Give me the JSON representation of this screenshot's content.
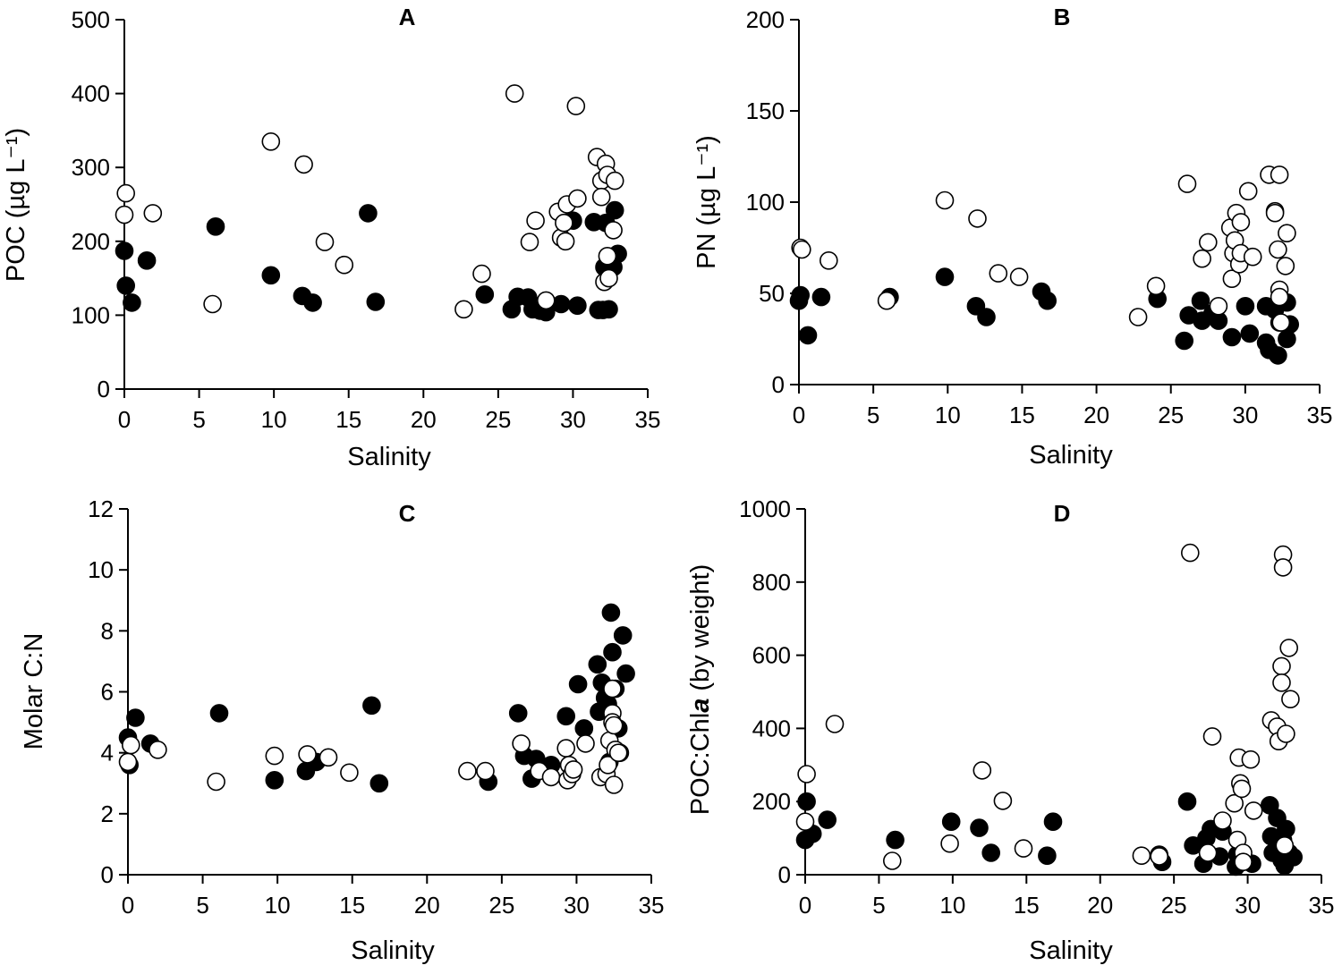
{
  "colors": {
    "filled": "#000000",
    "open_fill": "#ffffff",
    "stroke": "#000000"
  },
  "chart_data": [
    {
      "type": "scatter",
      "panel": "A",
      "xlabel": "Salinity",
      "ylabel": "POC (µg L⁻¹)",
      "xlim": [
        0,
        35
      ],
      "ylim": [
        0,
        500
      ],
      "xticks": [
        0,
        5,
        10,
        15,
        20,
        25,
        30,
        35
      ],
      "yticks": [
        0,
        100,
        200,
        300,
        400,
        500
      ],
      "series": [
        {
          "name": "filled",
          "points": [
            [
              0,
              187
            ],
            [
              0.1,
              140
            ],
            [
              0.5,
              117
            ],
            [
              1.5,
              174
            ],
            [
              6.1,
              220
            ],
            [
              9.8,
              154
            ],
            [
              11.9,
              126
            ],
            [
              12.6,
              117
            ],
            [
              16.3,
              238
            ],
            [
              16.8,
              118
            ],
            [
              24.1,
              128
            ],
            [
              25.9,
              108
            ],
            [
              26.3,
              125
            ],
            [
              27,
              124
            ],
            [
              27.3,
              108
            ],
            [
              27.8,
              106
            ],
            [
              28.2,
              104
            ],
            [
              29.2,
              115
            ],
            [
              30,
              228
            ],
            [
              30.3,
              113
            ],
            [
              31.4,
              226
            ],
            [
              31.7,
              107
            ],
            [
              32,
              107
            ],
            [
              32.1,
              165
            ],
            [
              32.2,
              225
            ],
            [
              32.4,
              108
            ],
            [
              32.7,
              165
            ],
            [
              32.8,
              242
            ],
            [
              33,
              183
            ]
          ]
        },
        {
          "name": "open",
          "points": [
            [
              0,
              236
            ],
            [
              0.1,
              265
            ],
            [
              1.9,
              238
            ],
            [
              5.9,
              115
            ],
            [
              9.8,
              335
            ],
            [
              12,
              304
            ],
            [
              13.4,
              199
            ],
            [
              14.7,
              168
            ],
            [
              22.7,
              108
            ],
            [
              23.9,
              156
            ],
            [
              26.1,
              400
            ],
            [
              27.1,
              199
            ],
            [
              27.5,
              228
            ],
            [
              28.2,
              120
            ],
            [
              29,
              240
            ],
            [
              29.2,
              205
            ],
            [
              29.4,
              225
            ],
            [
              29.5,
              200
            ],
            [
              29.6,
              250
            ],
            [
              30.2,
              383
            ],
            [
              30.3,
              258
            ],
            [
              31.6,
              314
            ],
            [
              31.9,
              282
            ],
            [
              31.9,
              260
            ],
            [
              32.1,
              145
            ],
            [
              32.2,
              305
            ],
            [
              32.3,
              290
            ],
            [
              32.3,
              180
            ],
            [
              32.4,
              150
            ],
            [
              32.7,
              215
            ],
            [
              32.8,
              282
            ]
          ]
        }
      ]
    },
    {
      "type": "scatter",
      "panel": "B",
      "xlabel": "Salinity",
      "ylabel": "PN (µg L⁻¹)",
      "xlim": [
        0,
        35
      ],
      "ylim": [
        0,
        200
      ],
      "xticks": [
        0,
        5,
        10,
        15,
        20,
        25,
        30,
        35
      ],
      "yticks": [
        0,
        50,
        100,
        150,
        200
      ],
      "series": [
        {
          "name": "filled",
          "points": [
            [
              0,
              46
            ],
            [
              0.1,
              49
            ],
            [
              0.6,
              27
            ],
            [
              1.5,
              48
            ],
            [
              6.1,
              48
            ],
            [
              9.8,
              59
            ],
            [
              11.9,
              43
            ],
            [
              12.6,
              37
            ],
            [
              16.3,
              51
            ],
            [
              16.7,
              46
            ],
            [
              24.1,
              47
            ],
            [
              25.9,
              24
            ],
            [
              26.2,
              38
            ],
            [
              27,
              46
            ],
            [
              27.1,
              35
            ],
            [
              27.8,
              39
            ],
            [
              28.2,
              35
            ],
            [
              29.1,
              26
            ],
            [
              30,
              43
            ],
            [
              30.3,
              28
            ],
            [
              31.4,
              43
            ],
            [
              31.4,
              23
            ],
            [
              31.6,
              19
            ],
            [
              32,
              41
            ],
            [
              32.2,
              16
            ],
            [
              32.3,
              34
            ],
            [
              32.8,
              45
            ],
            [
              32.8,
              25
            ],
            [
              33,
              33
            ]
          ]
        },
        {
          "name": "open",
          "points": [
            [
              0.1,
              75
            ],
            [
              0.2,
              74
            ],
            [
              2,
              68
            ],
            [
              5.9,
              46
            ],
            [
              9.8,
              101
            ],
            [
              12,
              91
            ],
            [
              13.4,
              61
            ],
            [
              14.8,
              59
            ],
            [
              22.8,
              37
            ],
            [
              24,
              54
            ],
            [
              26.1,
              110
            ],
            [
              27.1,
              69
            ],
            [
              27.5,
              78
            ],
            [
              28.2,
              43
            ],
            [
              29,
              86
            ],
            [
              29.1,
              58
            ],
            [
              29.2,
              72
            ],
            [
              29.3,
              79
            ],
            [
              29.4,
              94
            ],
            [
              29.6,
              66
            ],
            [
              29.7,
              89
            ],
            [
              29.7,
              72
            ],
            [
              30.2,
              106
            ],
            [
              30.5,
              70
            ],
            [
              31.6,
              115
            ],
            [
              32,
              95
            ],
            [
              32,
              94
            ],
            [
              32.2,
              74
            ],
            [
              32.3,
              52
            ],
            [
              32.3,
              48
            ],
            [
              32.3,
              115
            ],
            [
              32.4,
              34
            ],
            [
              32.7,
              65
            ],
            [
              32.8,
              83
            ]
          ]
        }
      ]
    },
    {
      "type": "scatter",
      "panel": "C",
      "xlabel": "Salinity",
      "ylabel": "Molar C:N",
      "xlim": [
        0,
        35
      ],
      "ylim": [
        0,
        12
      ],
      "xticks": [
        0,
        5,
        10,
        15,
        20,
        25,
        30,
        35
      ],
      "yticks": [
        0,
        2,
        4,
        6,
        8,
        10,
        12
      ],
      "series": [
        {
          "name": "filled",
          "points": [
            [
              0,
              4.5
            ],
            [
              0.1,
              3.6
            ],
            [
              0.5,
              5.15
            ],
            [
              1.5,
              4.3
            ],
            [
              6.1,
              5.3
            ],
            [
              9.8,
              3.1
            ],
            [
              11.9,
              3.4
            ],
            [
              12.6,
              3.7
            ],
            [
              16.3,
              5.55
            ],
            [
              16.8,
              3
            ],
            [
              24.1,
              3.05
            ],
            [
              26.1,
              5.3
            ],
            [
              26.5,
              3.9
            ],
            [
              27,
              3.15
            ],
            [
              27.3,
              3.8
            ],
            [
              28.3,
              3.6
            ],
            [
              29.3,
              5.2
            ],
            [
              30.1,
              6.25
            ],
            [
              30.5,
              4.8
            ],
            [
              31.4,
              6.9
            ],
            [
              31.5,
              5.35
            ],
            [
              31.7,
              6.3
            ],
            [
              31.9,
              5.8
            ],
            [
              32.1,
              5.6
            ],
            [
              32.2,
              3.7
            ],
            [
              32.3,
              8.6
            ],
            [
              32.4,
              7.3
            ],
            [
              32.6,
              6.1
            ],
            [
              32.8,
              4.8
            ],
            [
              32.9,
              4
            ],
            [
              33.1,
              7.85
            ],
            [
              33.3,
              6.6
            ]
          ]
        },
        {
          "name": "open",
          "points": [
            [
              0,
              3.7
            ],
            [
              0.2,
              4.25
            ],
            [
              2,
              4.1
            ],
            [
              5.9,
              3.05
            ],
            [
              9.8,
              3.9
            ],
            [
              12,
              3.95
            ],
            [
              13.4,
              3.85
            ],
            [
              14.8,
              3.35
            ],
            [
              22.7,
              3.4
            ],
            [
              23.9,
              3.4
            ],
            [
              26.3,
              4.3
            ],
            [
              27.5,
              3.4
            ],
            [
              28.3,
              3.2
            ],
            [
              29.3,
              4.15
            ],
            [
              29.4,
              3.1
            ],
            [
              29.5,
              3.6
            ],
            [
              29.7,
              3.3
            ],
            [
              29.8,
              3.45
            ],
            [
              30.6,
              4.3
            ],
            [
              31.6,
              3.2
            ],
            [
              32,
              3.3
            ],
            [
              32.1,
              3.6
            ],
            [
              32.2,
              4.4
            ],
            [
              32.4,
              6.1
            ],
            [
              32.4,
              5.3
            ],
            [
              32.4,
              5.0
            ],
            [
              32.5,
              4.9
            ],
            [
              32.5,
              2.95
            ],
            [
              32.6,
              4.1
            ],
            [
              32.8,
              4.0
            ]
          ]
        }
      ]
    },
    {
      "type": "scatter",
      "panel": "D",
      "xlabel": "Salinity",
      "ylabel": "POC:Chla (by weight)",
      "xlim": [
        0,
        35
      ],
      "ylim": [
        0,
        1000
      ],
      "xticks": [
        0,
        5,
        10,
        15,
        20,
        25,
        30,
        35
      ],
      "yticks": [
        0,
        200,
        400,
        600,
        800,
        1000
      ],
      "series": [
        {
          "name": "filled",
          "points": [
            [
              0,
              95
            ],
            [
              0.1,
              200
            ],
            [
              0.5,
              112
            ],
            [
              1.5,
              150
            ],
            [
              6.1,
              95
            ],
            [
              9.9,
              145
            ],
            [
              11.8,
              128
            ],
            [
              12.6,
              60
            ],
            [
              16.4,
              52
            ],
            [
              16.8,
              145
            ],
            [
              24,
              55
            ],
            [
              24.2,
              35
            ],
            [
              25.9,
              200
            ],
            [
              26.3,
              80
            ],
            [
              27,
              30
            ],
            [
              27.2,
              100
            ],
            [
              27.5,
              125
            ],
            [
              28.1,
              50
            ],
            [
              28.3,
              118
            ],
            [
              29.2,
              22
            ],
            [
              29.3,
              55
            ],
            [
              30.3,
              30
            ],
            [
              31.5,
              190
            ],
            [
              31.6,
              105
            ],
            [
              31.7,
              60
            ],
            [
              32,
              155
            ],
            [
              32.1,
              80
            ],
            [
              32.3,
              40
            ],
            [
              32.4,
              95
            ],
            [
              32.6,
              125
            ],
            [
              32.8,
              60
            ],
            [
              33.1,
              48
            ],
            [
              32.5,
              25
            ]
          ]
        },
        {
          "name": "open",
          "points": [
            [
              0,
              145
            ],
            [
              0.1,
              275
            ],
            [
              2,
              412
            ],
            [
              5.9,
              38
            ],
            [
              9.8,
              85
            ],
            [
              12,
              285
            ],
            [
              13.4,
              202
            ],
            [
              14.8,
              72
            ],
            [
              22.8,
              52
            ],
            [
              24,
              50
            ],
            [
              26.1,
              880
            ],
            [
              27.3,
              60
            ],
            [
              27.6,
              378
            ],
            [
              28.3,
              148
            ],
            [
              29.1,
              195
            ],
            [
              29.3,
              95
            ],
            [
              29.4,
              320
            ],
            [
              29.5,
              250
            ],
            [
              29.6,
              235
            ],
            [
              29.7,
              60
            ],
            [
              29.7,
              35
            ],
            [
              30.2,
              315
            ],
            [
              30.4,
              175
            ],
            [
              31.6,
              422
            ],
            [
              32,
              405
            ],
            [
              32.1,
              365
            ],
            [
              32.3,
              570
            ],
            [
              32.3,
              525
            ],
            [
              32.4,
              875
            ],
            [
              32.4,
              840
            ],
            [
              32.5,
              80
            ],
            [
              32.6,
              385
            ],
            [
              32.8,
              620
            ],
            [
              32.9,
              480
            ]
          ]
        }
      ]
    }
  ]
}
